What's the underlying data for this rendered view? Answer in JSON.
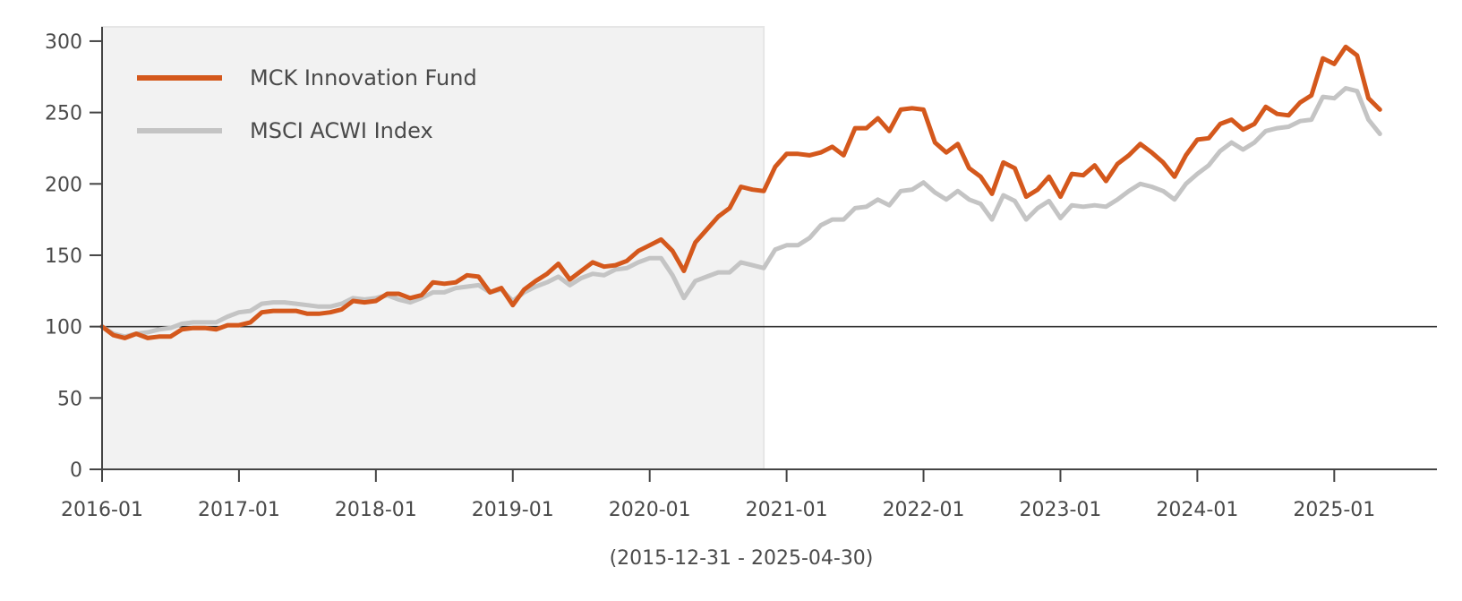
{
  "chart_data": {
    "type": "line",
    "title": "",
    "xlabel": "(2015-12-31 - 2025-04-30)",
    "ylabel": "",
    "ylim": [
      0,
      310
    ],
    "xlim": [
      "2016-01",
      "2025-10"
    ],
    "y_ticks": [
      0,
      50,
      100,
      150,
      200,
      250,
      300
    ],
    "x_ticks": [
      "2016-01",
      "2017-01",
      "2018-01",
      "2019-01",
      "2020-01",
      "2021-01",
      "2022-01",
      "2023-01",
      "2024-01",
      "2025-01"
    ],
    "reference_line": 100,
    "shaded_region": [
      "2016-01",
      "2020-11"
    ],
    "legend_placement": "top-left",
    "grid": false,
    "x": [
      "2016-01",
      "2016-02",
      "2016-03",
      "2016-04",
      "2016-05",
      "2016-06",
      "2016-07",
      "2016-08",
      "2016-09",
      "2016-10",
      "2016-11",
      "2016-12",
      "2017-01",
      "2017-02",
      "2017-03",
      "2017-04",
      "2017-05",
      "2017-06",
      "2017-07",
      "2017-08",
      "2017-09",
      "2017-10",
      "2017-11",
      "2017-12",
      "2018-01",
      "2018-02",
      "2018-03",
      "2018-04",
      "2018-05",
      "2018-06",
      "2018-07",
      "2018-08",
      "2018-09",
      "2018-10",
      "2018-11",
      "2018-12",
      "2019-01",
      "2019-02",
      "2019-03",
      "2019-04",
      "2019-05",
      "2019-06",
      "2019-07",
      "2019-08",
      "2019-09",
      "2019-10",
      "2019-11",
      "2019-12",
      "2020-01",
      "2020-02",
      "2020-03",
      "2020-04",
      "2020-05",
      "2020-06",
      "2020-07",
      "2020-08",
      "2020-09",
      "2020-10",
      "2020-11",
      "2020-12",
      "2021-01",
      "2021-02",
      "2021-03",
      "2021-04",
      "2021-05",
      "2021-06",
      "2021-07",
      "2021-08",
      "2021-09",
      "2021-10",
      "2021-11",
      "2021-12",
      "2022-01",
      "2022-02",
      "2022-03",
      "2022-04",
      "2022-05",
      "2022-06",
      "2022-07",
      "2022-08",
      "2022-09",
      "2022-10",
      "2022-11",
      "2022-12",
      "2023-01",
      "2023-02",
      "2023-03",
      "2023-04",
      "2023-05",
      "2023-06",
      "2023-07",
      "2023-08",
      "2023-09",
      "2023-10",
      "2023-11",
      "2023-12",
      "2024-01",
      "2024-02",
      "2024-03",
      "2024-04",
      "2024-05",
      "2024-06",
      "2024-07",
      "2024-08",
      "2024-09",
      "2024-10",
      "2024-11",
      "2024-12",
      "2025-01",
      "2025-02",
      "2025-03",
      "2025-04",
      "2025-05"
    ],
    "series": [
      {
        "name": "MCK Innovation Fund",
        "color": "#d4581c",
        "values": [
          100,
          94,
          92,
          95,
          92,
          93,
          93,
          98,
          99,
          99,
          98,
          101,
          101,
          103,
          110,
          111,
          111,
          111,
          109,
          109,
          110,
          112,
          118,
          117,
          118,
          123,
          123,
          120,
          122,
          131,
          130,
          131,
          136,
          135,
          124,
          127,
          115,
          126,
          132,
          137,
          144,
          133,
          139,
          145,
          142,
          143,
          146,
          153,
          157,
          161,
          153,
          139,
          159,
          168,
          177,
          183,
          198,
          196,
          195,
          212,
          221,
          221,
          220,
          222,
          226,
          220,
          239,
          239,
          246,
          237,
          252,
          253,
          252,
          229,
          222,
          228,
          211,
          205,
          193,
          215,
          211,
          191,
          196,
          205,
          191,
          207,
          206,
          213,
          202,
          214,
          220,
          228,
          222,
          215,
          205,
          220,
          231,
          232,
          242,
          245,
          238,
          242,
          254,
          249,
          248,
          257,
          262,
          288,
          284,
          296,
          290,
          260,
          252
        ]
      },
      {
        "name": "MSCI ACWI Index",
        "color": "#c4c4c4",
        "values": [
          100,
          95,
          93,
          95,
          96,
          98,
          99,
          102,
          103,
          103,
          103,
          107,
          110,
          111,
          116,
          117,
          117,
          116,
          115,
          114,
          114,
          116,
          120,
          119,
          120,
          122,
          119,
          117,
          120,
          124,
          124,
          127,
          128,
          129,
          124,
          126,
          118,
          124,
          128,
          131,
          135,
          129,
          134,
          137,
          136,
          140,
          141,
          145,
          148,
          148,
          136,
          120,
          132,
          135,
          138,
          138,
          145,
          143,
          141,
          154,
          157,
          157,
          162,
          171,
          175,
          175,
          183,
          184,
          189,
          185,
          195,
          196,
          201,
          194,
          189,
          195,
          189,
          186,
          175,
          192,
          188,
          175,
          183,
          188,
          176,
          185,
          184,
          185,
          184,
          189,
          195,
          200,
          198,
          195,
          189,
          200,
          207,
          213,
          223,
          229,
          224,
          229,
          237,
          239,
          240,
          244,
          245,
          261,
          260,
          267,
          265,
          245,
          235
        ]
      }
    ]
  }
}
